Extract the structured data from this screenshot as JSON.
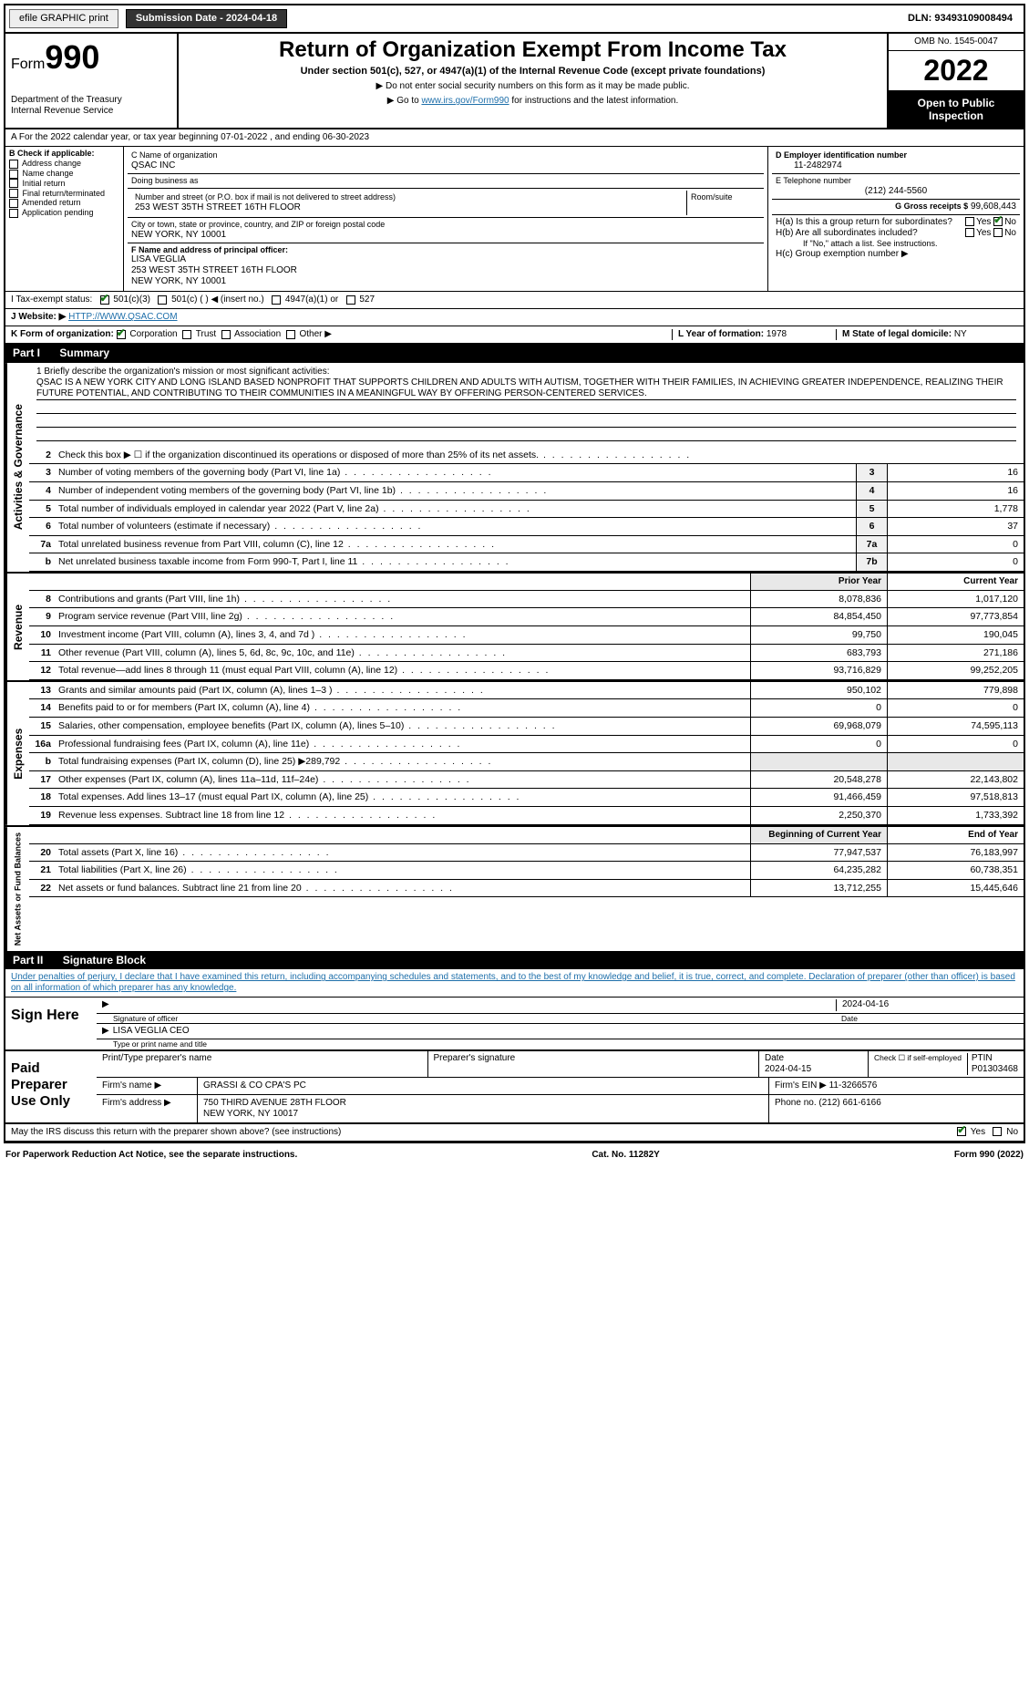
{
  "topbar": {
    "efile_label": "efile GRAPHIC print",
    "submission_btn": "Submission Date - 2024-04-18",
    "dln": "DLN: 93493109008494"
  },
  "header": {
    "form_label": "Form",
    "form_num": "990",
    "dept": "Department of the Treasury",
    "irs": "Internal Revenue Service",
    "title": "Return of Organization Exempt From Income Tax",
    "subtitle": "Under section 501(c), 527, or 4947(a)(1) of the Internal Revenue Code (except private foundations)",
    "note1": "▶ Do not enter social security numbers on this form as it may be made public.",
    "note2_pre": "▶ Go to ",
    "note2_link": "www.irs.gov/Form990",
    "note2_post": " for instructions and the latest information.",
    "omb": "OMB No. 1545-0047",
    "year": "2022",
    "open": "Open to Public Inspection"
  },
  "period": {
    "line": "A For the 2022 calendar year, or tax year beginning 07-01-2022    , and ending 06-30-2023"
  },
  "checkB": {
    "label": "B Check if applicable:",
    "opts": [
      "Address change",
      "Name change",
      "Initial return",
      "Final return/terminated",
      "Amended return",
      "Application pending"
    ]
  },
  "blockC": {
    "name_label": "C Name of organization",
    "name": "QSAC INC",
    "dba_label": "Doing business as",
    "dba": "",
    "addr_label": "Number and street (or P.O. box if mail is not delivered to street address)",
    "room_label": "Room/suite",
    "addr": "253 WEST 35TH STREET 16TH FLOOR",
    "city_label": "City or town, state or province, country, and ZIP or foreign postal code",
    "city": "NEW YORK, NY  10001",
    "f_label": "F Name and address of principal officer:",
    "f_name": "LISA VEGLIA",
    "f_addr1": "253 WEST 35TH STREET 16TH FLOOR",
    "f_addr2": "NEW YORK, NY  10001"
  },
  "blockDE": {
    "d_label": "D Employer identification number",
    "d_val": "11-2482974",
    "e_label": "E Telephone number",
    "e_val": "(212) 244-5560",
    "g_label": "G Gross receipts $",
    "g_val": "99,608,443"
  },
  "blockH": {
    "ha": "H(a)  Is this a group return for subordinates?",
    "hb": "H(b)  Are all subordinates included?",
    "hb_note": "If \"No,\" attach a list. See instructions.",
    "hc": "H(c)  Group exemption number ▶",
    "yes": "Yes",
    "no": "No"
  },
  "lineI": {
    "label": "I   Tax-exempt status:",
    "opt1": "501(c)(3)",
    "opt2": "501(c) (  ) ◀ (insert no.)",
    "opt3": "4947(a)(1) or",
    "opt4": "527"
  },
  "lineJ": {
    "label": "J   Website: ▶",
    "val": "HTTP://WWW.QSAC.COM"
  },
  "lineK": {
    "label": "K Form of organization:",
    "opts": [
      "Corporation",
      "Trust",
      "Association",
      "Other ▶"
    ]
  },
  "lineL": {
    "label": "L Year of formation:",
    "val": "1978"
  },
  "lineM": {
    "label": "M State of legal domicile:",
    "val": "NY"
  },
  "part1": {
    "hdr": "Part I",
    "title": "Summary",
    "q1_label": "1  Briefly describe the organization's mission or most significant activities:",
    "mission": "QSAC IS A NEW YORK CITY AND LONG ISLAND BASED NONPROFIT THAT SUPPORTS CHILDREN AND ADULTS WITH AUTISM, TOGETHER WITH THEIR FAMILIES, IN ACHIEVING GREATER INDEPENDENCE, REALIZING THEIR FUTURE POTENTIAL, AND CONTRIBUTING TO THEIR COMMUNITIES IN A MEANINGFUL WAY BY OFFERING PERSON-CENTERED SERVICES.",
    "prior_hdr": "Prior Year",
    "current_hdr": "Current Year",
    "begin_hdr": "Beginning of Current Year",
    "end_hdr": "End of Year",
    "rows_single": [
      {
        "n": "2",
        "t": "Check this box ▶ ☐  if the organization discontinued its operations or disposed of more than 25% of its net assets."
      },
      {
        "n": "3",
        "t": "Number of voting members of the governing body (Part VI, line 1a)",
        "box": "3",
        "v": "16"
      },
      {
        "n": "4",
        "t": "Number of independent voting members of the governing body (Part VI, line 1b)",
        "box": "4",
        "v": "16"
      },
      {
        "n": "5",
        "t": "Total number of individuals employed in calendar year 2022 (Part V, line 2a)",
        "box": "5",
        "v": "1,778"
      },
      {
        "n": "6",
        "t": "Total number of volunteers (estimate if necessary)",
        "box": "6",
        "v": "37"
      },
      {
        "n": "7a",
        "t": "Total unrelated business revenue from Part VIII, column (C), line 12",
        "box": "7a",
        "v": "0"
      },
      {
        "n": "b",
        "t": "Net unrelated business taxable income from Form 990-T, Part I, line 11",
        "box": "7b",
        "v": "0"
      }
    ],
    "rows_revenue": [
      {
        "n": "8",
        "t": "Contributions and grants (Part VIII, line 1h)",
        "p": "8,078,836",
        "c": "1,017,120"
      },
      {
        "n": "9",
        "t": "Program service revenue (Part VIII, line 2g)",
        "p": "84,854,450",
        "c": "97,773,854"
      },
      {
        "n": "10",
        "t": "Investment income (Part VIII, column (A), lines 3, 4, and 7d )",
        "p": "99,750",
        "c": "190,045"
      },
      {
        "n": "11",
        "t": "Other revenue (Part VIII, column (A), lines 5, 6d, 8c, 9c, 10c, and 11e)",
        "p": "683,793",
        "c": "271,186"
      },
      {
        "n": "12",
        "t": "Total revenue—add lines 8 through 11 (must equal Part VIII, column (A), line 12)",
        "p": "93,716,829",
        "c": "99,252,205"
      }
    ],
    "rows_expenses": [
      {
        "n": "13",
        "t": "Grants and similar amounts paid (Part IX, column (A), lines 1–3 )",
        "p": "950,102",
        "c": "779,898"
      },
      {
        "n": "14",
        "t": "Benefits paid to or for members (Part IX, column (A), line 4)",
        "p": "0",
        "c": "0"
      },
      {
        "n": "15",
        "t": "Salaries, other compensation, employee benefits (Part IX, column (A), lines 5–10)",
        "p": "69,968,079",
        "c": "74,595,113"
      },
      {
        "n": "16a",
        "t": "Professional fundraising fees (Part IX, column (A), line 11e)",
        "p": "0",
        "c": "0"
      },
      {
        "n": "b",
        "t": "Total fundraising expenses (Part IX, column (D), line 25) ▶289,792",
        "p": "",
        "c": "",
        "shade": true
      },
      {
        "n": "17",
        "t": "Other expenses (Part IX, column (A), lines 11a–11d, 11f–24e)",
        "p": "20,548,278",
        "c": "22,143,802"
      },
      {
        "n": "18",
        "t": "Total expenses. Add lines 13–17 (must equal Part IX, column (A), line 25)",
        "p": "91,466,459",
        "c": "97,518,813"
      },
      {
        "n": "19",
        "t": "Revenue less expenses. Subtract line 18 from line 12",
        "p": "2,250,370",
        "c": "1,733,392"
      }
    ],
    "rows_net": [
      {
        "n": "20",
        "t": "Total assets (Part X, line 16)",
        "p": "77,947,537",
        "c": "76,183,997"
      },
      {
        "n": "21",
        "t": "Total liabilities (Part X, line 26)",
        "p": "64,235,282",
        "c": "60,738,351"
      },
      {
        "n": "22",
        "t": "Net assets or fund balances. Subtract line 21 from line 20",
        "p": "13,712,255",
        "c": "15,445,646"
      }
    ],
    "tab_gov": "Activities & Governance",
    "tab_rev": "Revenue",
    "tab_exp": "Expenses",
    "tab_net": "Net Assets or Fund Balances"
  },
  "part2": {
    "hdr": "Part II",
    "title": "Signature Block",
    "penalties": "Under penalties of perjury, I declare that I have examined this return, including accompanying schedules and statements, and to the best of my knowledge and belief, it is true, correct, and complete. Declaration of preparer (other than officer) is based on all information of which preparer has any knowledge.",
    "sign_here": "Sign Here",
    "sig_officer": "Signature of officer",
    "sig_date": "Date",
    "sig_date_val": "2024-04-16",
    "officer_name": "LISA VEGLIA  CEO",
    "type_name": "Type or print name and title",
    "paid": "Paid Preparer Use Only",
    "prep_name_label": "Print/Type preparer's name",
    "prep_sig_label": "Preparer's signature",
    "prep_date_label": "Date",
    "prep_date_val": "2024-04-15",
    "prep_check": "Check ☐ if self-employed",
    "ptin_label": "PTIN",
    "ptin": "P01303468",
    "firm_name_label": "Firm's name    ▶",
    "firm_name": "GRASSI & CO CPA'S PC",
    "firm_ein_label": "Firm's EIN ▶",
    "firm_ein": "11-3266576",
    "firm_addr_label": "Firm's address ▶",
    "firm_addr1": "750 THIRD AVENUE 28TH FLOOR",
    "firm_addr2": "NEW YORK, NY  10017",
    "phone_label": "Phone no.",
    "phone": "(212) 661-6166",
    "may_irs": "May the IRS discuss this return with the preparer shown above? (see instructions)"
  },
  "footer": {
    "left": "For Paperwork Reduction Act Notice, see the separate instructions.",
    "mid": "Cat. No. 11282Y",
    "right": "Form 990 (2022)"
  }
}
